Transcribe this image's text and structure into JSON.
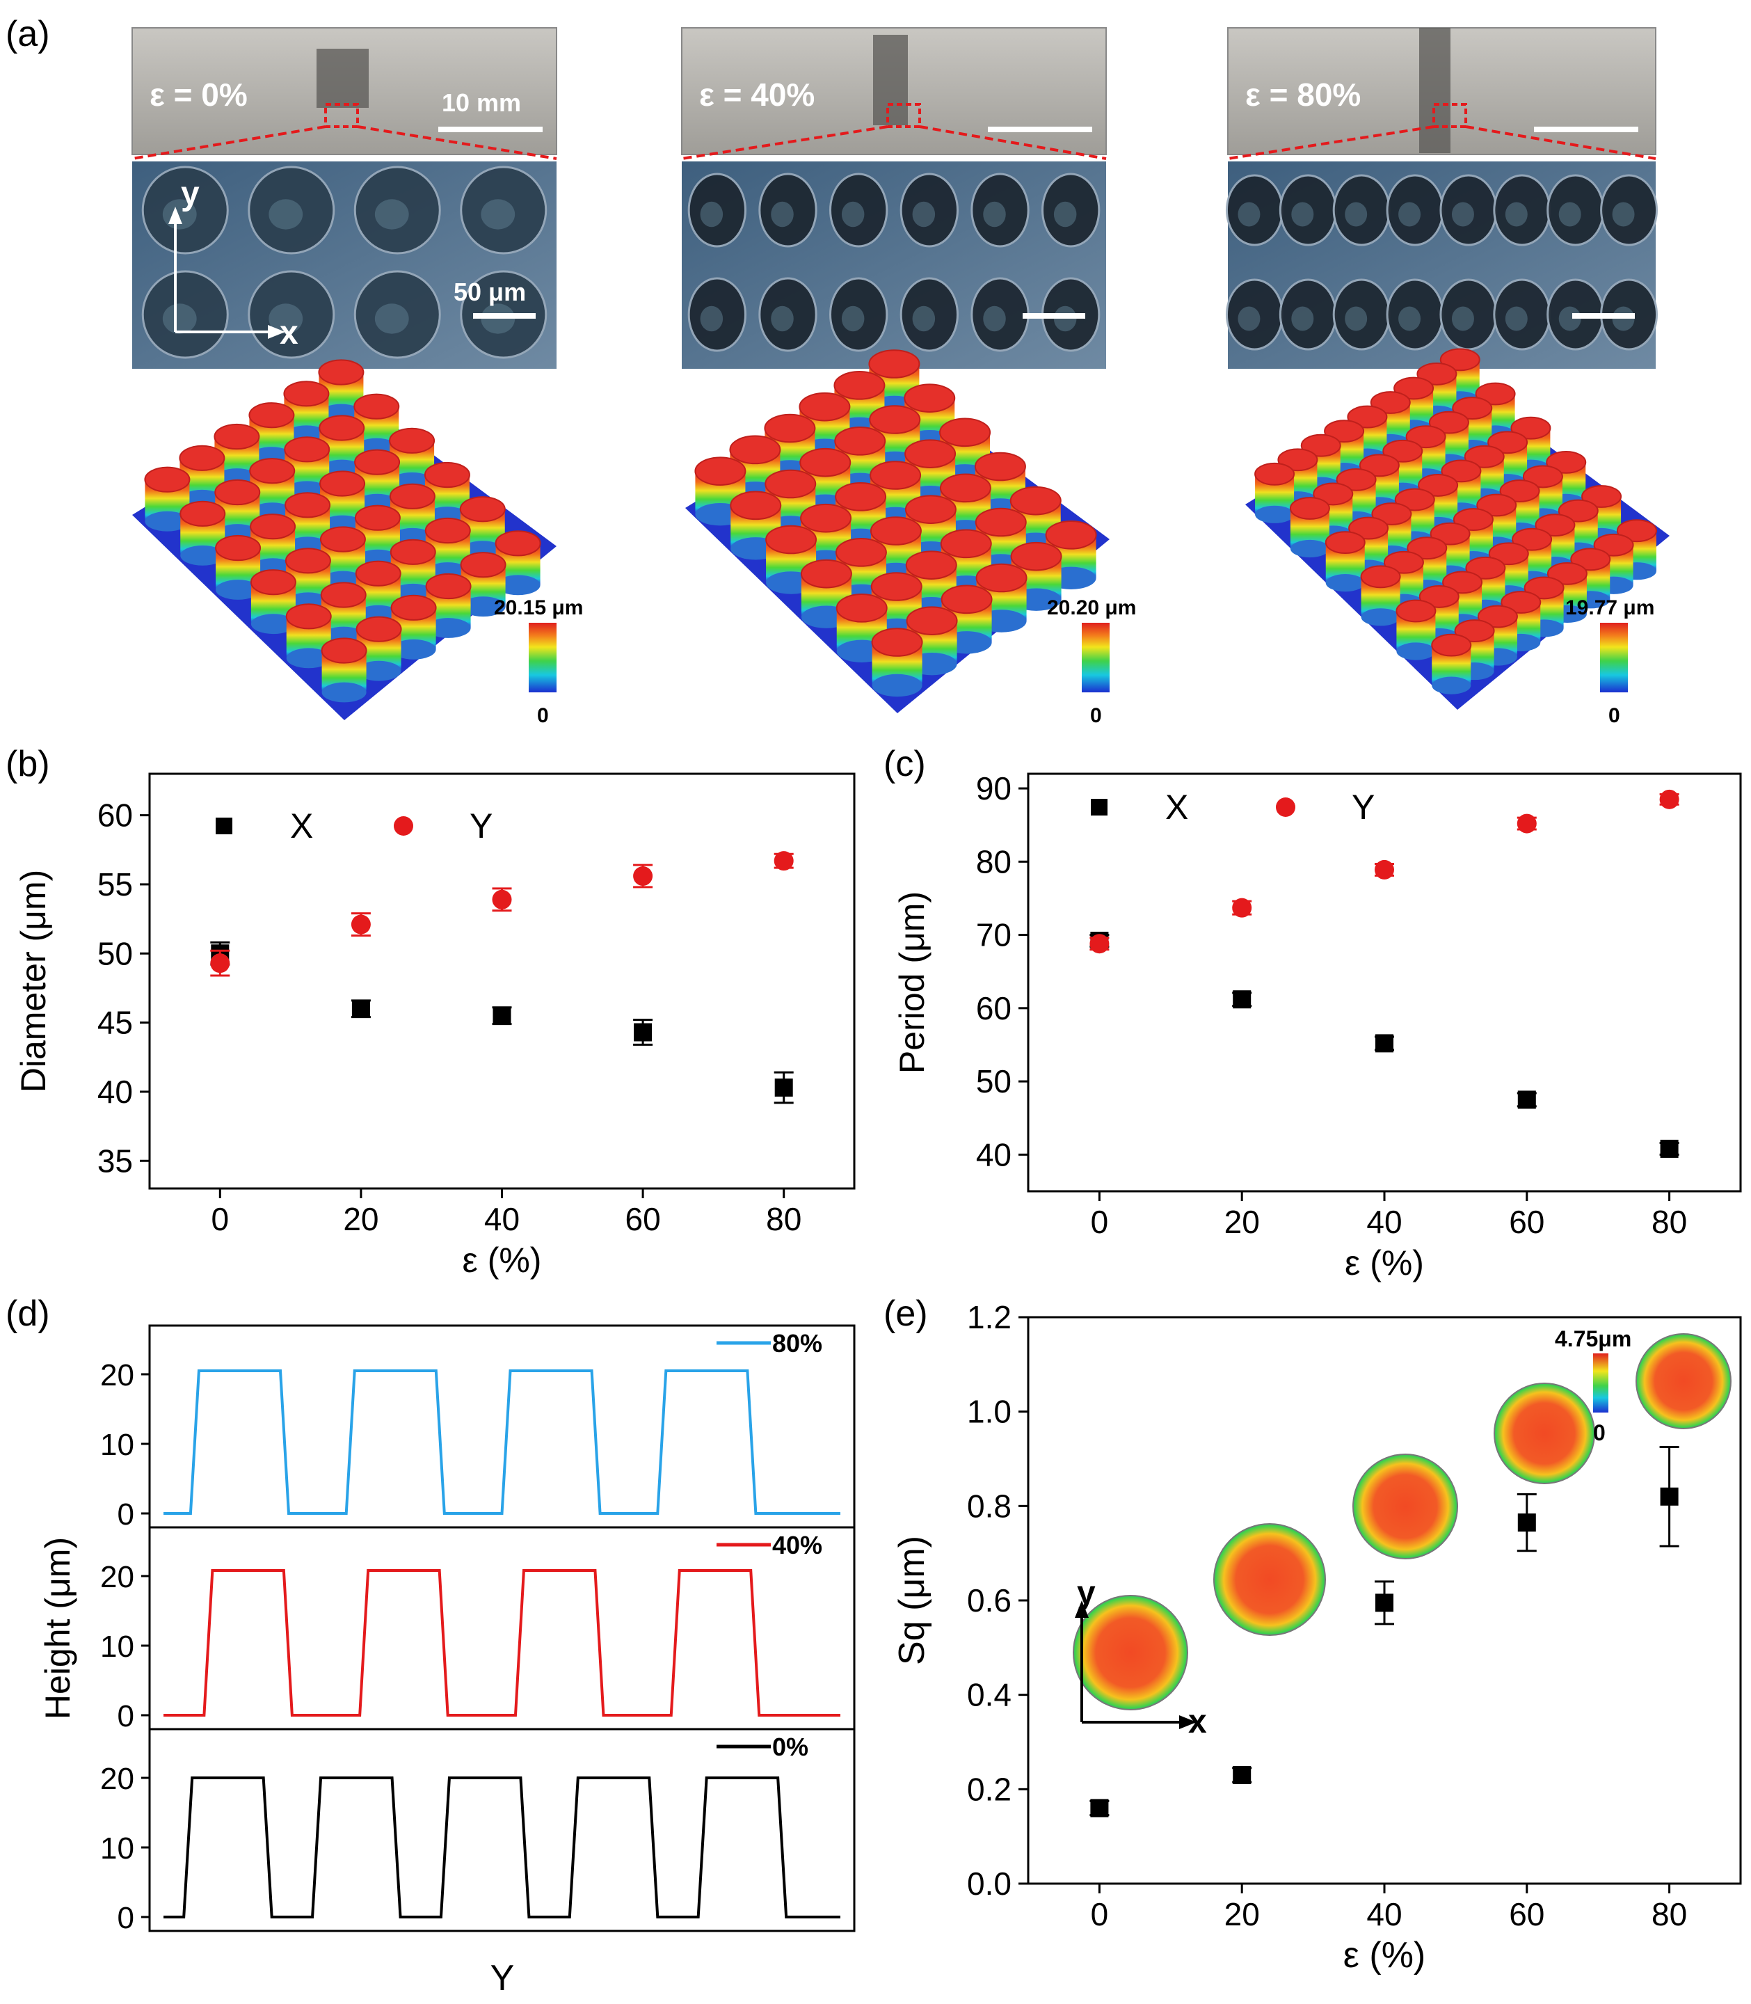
{
  "panel_labels": {
    "a": "(a)",
    "b": "(b)",
    "c": "(c)",
    "d": "(d)",
    "e": "(e)"
  },
  "panel_a": {
    "strain_labels": [
      "ε = 0%",
      "ε = 40%",
      "ε = 80%"
    ],
    "scale_10mm": "10 mm",
    "scale_50um": "50 μm",
    "axis_y": "y",
    "axis_x": "x",
    "colorbar_max": [
      "20.15 μm",
      "20.20 μm",
      "19.77 μm"
    ],
    "colorbar_min": [
      "0",
      "0",
      "0"
    ]
  },
  "chart_data": [
    {
      "type": "scatter",
      "panel": "b",
      "x": [
        0,
        20,
        40,
        60,
        80
      ],
      "series": [
        {
          "name": "X",
          "marker": "square",
          "color": "#000000",
          "values": [
            50.0,
            46.0,
            45.5,
            44.3,
            40.3
          ],
          "errors": [
            0.8,
            0.6,
            0.6,
            0.9,
            1.1
          ]
        },
        {
          "name": "Y",
          "marker": "circle",
          "color": "#e41a1c",
          "values": [
            49.3,
            52.1,
            53.9,
            55.6,
            56.7
          ],
          "errors": [
            0.9,
            0.8,
            0.8,
            0.8,
            0.5
          ]
        }
      ],
      "xlabel": "ε (%)",
      "ylabel": "Diameter (μm)",
      "xlim": [
        -10,
        90
      ],
      "ylim": [
        33,
        63
      ],
      "xticks": [
        0,
        20,
        40,
        60,
        80
      ],
      "yticks": [
        35,
        40,
        45,
        50,
        55,
        60
      ],
      "xtick_labels": [
        "0",
        "20",
        "40",
        "60",
        "80"
      ],
      "ytick_labels": [
        "35",
        "40",
        "45",
        "50",
        "55",
        "60"
      ],
      "legend": "top-left, horizontal"
    },
    {
      "type": "scatter",
      "panel": "c",
      "x": [
        0,
        20,
        40,
        60,
        80
      ],
      "series": [
        {
          "name": "X",
          "marker": "square",
          "color": "#000000",
          "values": [
            69.2,
            61.2,
            55.2,
            47.5,
            40.8
          ],
          "errors": [
            0.8,
            0.9,
            0.9,
            0.9,
            0.8
          ]
        },
        {
          "name": "Y",
          "marker": "circle",
          "color": "#e41a1c",
          "values": [
            68.8,
            73.7,
            78.9,
            85.2,
            88.5
          ],
          "errors": [
            0.8,
            0.9,
            0.8,
            0.8,
            0.7
          ]
        }
      ],
      "xlabel": "ε (%)",
      "ylabel": "Period (μm)",
      "xlim": [
        -10,
        90
      ],
      "ylim": [
        35,
        92
      ],
      "xticks": [
        0,
        20,
        40,
        60,
        80
      ],
      "yticks": [
        40,
        50,
        60,
        70,
        80,
        90
      ],
      "xtick_labels": [
        "0",
        "20",
        "40",
        "60",
        "80"
      ],
      "ytick_labels": [
        "40",
        "50",
        "60",
        "70",
        "80",
        "90"
      ],
      "legend": "top-left, horizontal"
    },
    {
      "type": "line",
      "panel": "d",
      "xlabel": "Y",
      "ylabel": "Height (μm)",
      "ylim": [
        -2,
        25
      ],
      "yticks": [
        0,
        10,
        20
      ],
      "ytick_labels": [
        "0",
        "10",
        "20"
      ],
      "series": [
        {
          "name": "80%",
          "color": "#29a3e8",
          "plateau": 20.5,
          "base": 0,
          "pillar_starts": [
            0.04,
            0.27,
            0.5,
            0.73
          ],
          "pillar_width": 0.145
        },
        {
          "name": "40%",
          "color": "#e41a1c",
          "plateau": 20.8,
          "base": 0,
          "pillar_starts": [
            0.06,
            0.29,
            0.52,
            0.75
          ],
          "pillar_width": 0.13
        },
        {
          "name": "0%",
          "color": "#000000",
          "plateau": 20.0,
          "base": 0,
          "pillar_starts": [
            0.03,
            0.22,
            0.41,
            0.6,
            0.79
          ],
          "pillar_width": 0.13
        }
      ]
    },
    {
      "type": "scatter",
      "panel": "e",
      "x": [
        0,
        20,
        40,
        60,
        80
      ],
      "series": [
        {
          "name": "Sq",
          "marker": "square",
          "color": "#000000",
          "values": [
            0.16,
            0.23,
            0.595,
            0.765,
            0.82
          ],
          "errors": [
            0.015,
            0.015,
            0.045,
            0.06,
            0.105
          ]
        }
      ],
      "xlabel": "ε (%)",
      "ylabel": "Sq (μm)",
      "xlim": [
        -10,
        90
      ],
      "ylim": [
        0,
        1.2
      ],
      "xticks": [
        0,
        20,
        40,
        60,
        80
      ],
      "yticks": [
        0.0,
        0.2,
        0.4,
        0.6,
        0.8,
        1.0,
        1.2
      ],
      "xtick_labels": [
        "0",
        "20",
        "40",
        "60",
        "80"
      ],
      "ytick_labels": [
        "0.0",
        "0.2",
        "0.4",
        "0.6",
        "0.8",
        "1.0",
        "1.2"
      ],
      "inset_colorbar_max": "4.75μm",
      "inset_colorbar_min": "0",
      "inset_axis_y": "y",
      "inset_axis_x": "x"
    }
  ]
}
